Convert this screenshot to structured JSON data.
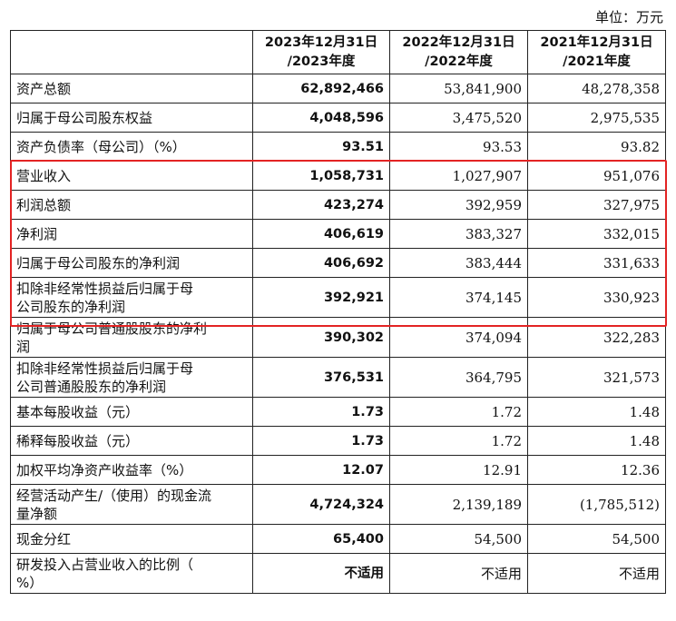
{
  "unit_label": "单位：万元",
  "headers": [
    "",
    "2023年12月31日\n/2023年度",
    "2022年12月31日\n/2022年度",
    "2021年12月31日\n/2021年度"
  ],
  "rows": [
    {
      "label": "资产总额",
      "values": [
        "62,892,466",
        "53,841,900",
        "48,278,358"
      ]
    },
    {
      "label": "归属于母公司股东权益",
      "values": [
        "4,048,596",
        "3,475,520",
        "2,975,535"
      ]
    },
    {
      "label": "资产负债率（母公司）（%）",
      "values": [
        "93.51",
        "93.53",
        "93.82"
      ]
    },
    {
      "label": "营业收入",
      "values": [
        "1,058,731",
        "1,027,907",
        "951,076"
      ]
    },
    {
      "label": "利润总额",
      "values": [
        "423,274",
        "392,959",
        "327,975"
      ]
    },
    {
      "label": "净利润",
      "values": [
        "406,619",
        "383,327",
        "332,015"
      ]
    },
    {
      "label": "归属于母公司股东的净利润",
      "values": [
        "406,692",
        "383,444",
        "331,633"
      ]
    },
    {
      "label": "扣除非经常性损益后归属于母公司股东的净利润",
      "values": [
        "392,921",
        "374,145",
        "330,923"
      ]
    },
    {
      "label": "归属于母公司普通股股东的净利润",
      "values": [
        "390,302",
        "374,094",
        "322,283"
      ]
    },
    {
      "label": "扣除非经常性损益后归属于母公司普通股股东的净利润",
      "values": [
        "376,531",
        "364,795",
        "321,573"
      ]
    },
    {
      "label": "基本每股收益（元）",
      "values": [
        "1.73",
        "1.72",
        "1.48"
      ]
    },
    {
      "label": "稀释每股收益（元）",
      "values": [
        "1.73",
        "1.72",
        "1.48"
      ]
    },
    {
      "label": "加权平均净资产收益率（%）",
      "values": [
        "12.07",
        "12.91",
        "12.36"
      ]
    },
    {
      "label": "经营活动产生/（使用）的现金流量净额",
      "values": [
        "4,724,324",
        "2,139,189",
        "(1,785,512)"
      ]
    },
    {
      "label": "现金分红",
      "values": [
        "65,400",
        "54,500",
        "54,500"
      ]
    },
    {
      "label": "研发投入占营业收入的比例（%）",
      "values": [
        "不适用",
        "不适用",
        "不适用"
      ]
    }
  ],
  "highlight_color": "#e32323"
}
